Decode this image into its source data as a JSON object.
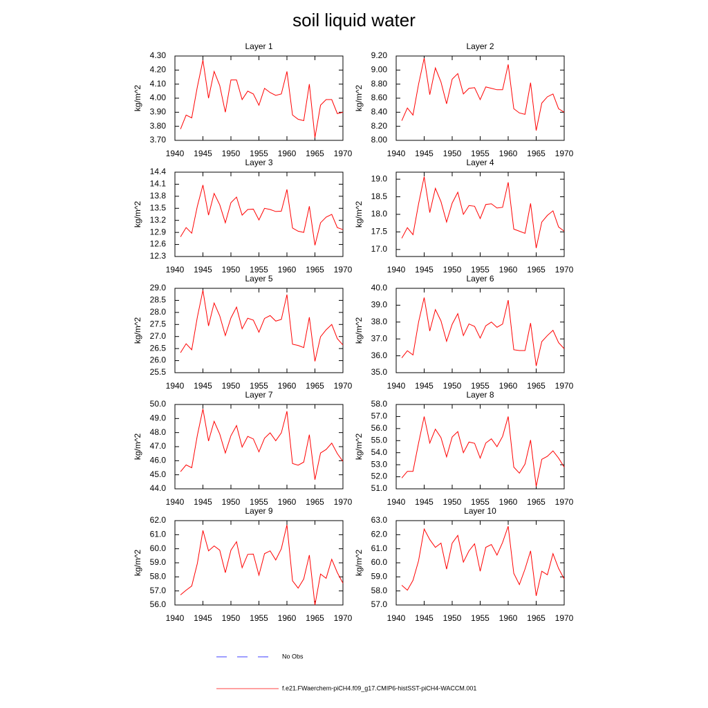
{
  "title": "soil liquid water",
  "legend": [
    {
      "name": "No Obs",
      "color": "#0000ff",
      "dash": true
    },
    {
      "name": "f.e21.FWaerchem-piCH4.f09_g17.CMIP6-histSST-piCH4-WACCM.001",
      "color": "#ff0000",
      "dash": false
    }
  ],
  "chart_data": [
    {
      "type": "line",
      "title": "Layer 1",
      "ylabel": "kg/m^2",
      "color": "#ff0000",
      "x": [
        1941,
        1942,
        1943,
        1944,
        1945,
        1946,
        1947,
        1948,
        1949,
        1950,
        1951,
        1952,
        1953,
        1954,
        1955,
        1956,
        1957,
        1958,
        1959,
        1960,
        1961,
        1962,
        1963,
        1964,
        1965,
        1966,
        1967,
        1968,
        1969,
        1970
      ],
      "values": [
        3.78,
        3.88,
        3.86,
        4.08,
        4.27,
        4.0,
        4.19,
        4.09,
        3.9,
        4.13,
        4.13,
        3.99,
        4.05,
        4.03,
        3.95,
        4.07,
        4.04,
        4.02,
        4.03,
        4.19,
        3.88,
        3.85,
        3.84,
        4.1,
        3.72,
        3.95,
        3.99,
        3.99,
        3.89,
        3.9
      ],
      "xlim": [
        1940,
        1970
      ],
      "xticks": [
        1940,
        1945,
        1950,
        1955,
        1960,
        1965,
        1970
      ],
      "ylim": [
        3.7,
        4.3
      ],
      "yticks": [
        {
          "value": 3.7,
          "label": "3.70"
        },
        {
          "value": 3.8,
          "label": "3.80"
        },
        {
          "value": 3.9,
          "label": "3.90"
        },
        {
          "value": 4.0,
          "label": "4.00"
        },
        {
          "value": 4.1,
          "label": "4.10"
        },
        {
          "value": 4.2,
          "label": "4.20"
        },
        {
          "value": 4.3,
          "label": "4.30"
        }
      ]
    },
    {
      "type": "line",
      "title": "Layer 2",
      "ylabel": "kg/m^2",
      "color": "#ff0000",
      "x": [
        1941,
        1942,
        1943,
        1944,
        1945,
        1946,
        1947,
        1948,
        1949,
        1950,
        1951,
        1952,
        1953,
        1954,
        1955,
        1956,
        1957,
        1958,
        1959,
        1960,
        1961,
        1962,
        1963,
        1964,
        1965,
        1966,
        1967,
        1968,
        1969,
        1970
      ],
      "values": [
        8.28,
        8.46,
        8.36,
        8.8,
        9.17,
        8.65,
        9.03,
        8.83,
        8.52,
        8.87,
        8.95,
        8.66,
        8.74,
        8.75,
        8.58,
        8.76,
        8.74,
        8.72,
        8.72,
        9.08,
        8.45,
        8.39,
        8.37,
        8.82,
        8.14,
        8.53,
        8.62,
        8.66,
        8.45,
        8.4
      ],
      "xlim": [
        1940,
        1970
      ],
      "xticks": [
        1940,
        1945,
        1950,
        1955,
        1960,
        1965,
        1970
      ],
      "ylim": [
        8.0,
        9.2
      ],
      "yticks": [
        {
          "value": 8.0,
          "label": "8.00"
        },
        {
          "value": 8.2,
          "label": "8.20"
        },
        {
          "value": 8.4,
          "label": "8.40"
        },
        {
          "value": 8.6,
          "label": "8.60"
        },
        {
          "value": 8.8,
          "label": "8.80"
        },
        {
          "value": 9.0,
          "label": "9.00"
        },
        {
          "value": 9.2,
          "label": "9.20"
        }
      ]
    },
    {
      "type": "line",
      "title": "Layer 3",
      "ylabel": "kg/m^2",
      "color": "#ff0000",
      "x": [
        1941,
        1942,
        1943,
        1944,
        1945,
        1946,
        1947,
        1948,
        1949,
        1950,
        1951,
        1952,
        1953,
        1954,
        1955,
        1956,
        1957,
        1958,
        1959,
        1960,
        1961,
        1962,
        1963,
        1964,
        1965,
        1966,
        1967,
        1968,
        1969,
        1970
      ],
      "values": [
        12.79,
        13.02,
        12.88,
        13.55,
        14.08,
        13.33,
        13.87,
        13.59,
        13.14,
        13.64,
        13.78,
        13.33,
        13.47,
        13.48,
        13.21,
        13.5,
        13.47,
        13.42,
        13.43,
        13.97,
        13.01,
        12.93,
        12.9,
        13.55,
        12.58,
        13.14,
        13.28,
        13.35,
        13.02,
        12.97
      ],
      "xlim": [
        1940,
        1970
      ],
      "xticks": [
        1940,
        1945,
        1950,
        1955,
        1960,
        1965,
        1970
      ],
      "ylim": [
        12.3,
        14.4
      ],
      "yticks": [
        12.3,
        12.6,
        12.9,
        13.2,
        13.5,
        13.8,
        14.1,
        14.4
      ]
    },
    {
      "type": "line",
      "title": "Layer 4",
      "ylabel": "kg/m^2",
      "color": "#ff0000",
      "x": [
        1941,
        1942,
        1943,
        1944,
        1945,
        1946,
        1947,
        1948,
        1949,
        1950,
        1951,
        1952,
        1953,
        1954,
        1955,
        1956,
        1957,
        1958,
        1959,
        1960,
        1961,
        1962,
        1963,
        1964,
        1965,
        1966,
        1967,
        1968,
        1969,
        1970
      ],
      "values": [
        17.32,
        17.62,
        17.42,
        18.3,
        19.07,
        18.05,
        18.74,
        18.36,
        17.78,
        18.32,
        18.63,
        18.0,
        18.25,
        18.23,
        17.88,
        18.28,
        18.3,
        18.18,
        18.2,
        18.91,
        17.58,
        17.52,
        17.46,
        18.31,
        17.04,
        17.78,
        17.97,
        18.1,
        17.64,
        17.52
      ],
      "xlim": [
        1940,
        1970
      ],
      "xticks": [
        1940,
        1945,
        1950,
        1955,
        1960,
        1965,
        1970
      ],
      "ylim": [
        16.8,
        19.2
      ],
      "yticks": [
        {
          "value": 17.0,
          "label": "17.0"
        },
        17.5,
        {
          "value": 18.0,
          "label": "18.0"
        },
        18.5,
        {
          "value": 19.0,
          "label": "19.0"
        }
      ]
    },
    {
      "type": "line",
      "title": "Layer 5",
      "ylabel": "kg/m^2",
      "color": "#ff0000",
      "x": [
        1941,
        1942,
        1943,
        1944,
        1945,
        1946,
        1947,
        1948,
        1949,
        1950,
        1951,
        1952,
        1953,
        1954,
        1955,
        1956,
        1957,
        1958,
        1959,
        1960,
        1961,
        1962,
        1963,
        1964,
        1965,
        1966,
        1967,
        1968,
        1969,
        1970
      ],
      "values": [
        26.33,
        26.7,
        26.45,
        27.8,
        28.92,
        27.44,
        28.39,
        27.86,
        27.04,
        27.77,
        28.22,
        27.32,
        27.76,
        27.68,
        27.18,
        27.75,
        27.87,
        27.64,
        27.71,
        28.74,
        26.68,
        26.63,
        26.54,
        27.8,
        25.97,
        26.99,
        27.28,
        27.5,
        26.91,
        26.65
      ],
      "xlim": [
        1940,
        1970
      ],
      "xticks": [
        1940,
        1945,
        1950,
        1955,
        1960,
        1965,
        1970
      ],
      "ylim": [
        25.5,
        29.0
      ],
      "yticks": [
        25.5,
        {
          "value": 26.0,
          "label": "26.0"
        },
        26.5,
        {
          "value": 27.0,
          "label": "27.0"
        },
        27.5,
        {
          "value": 28.0,
          "label": "28.0"
        },
        28.5,
        {
          "value": 29.0,
          "label": "29.0"
        }
      ]
    },
    {
      "type": "line",
      "title": "Layer 6",
      "ylabel": "kg/m^2",
      "color": "#ff0000",
      "x": [
        1941,
        1942,
        1943,
        1944,
        1945,
        1946,
        1947,
        1948,
        1949,
        1950,
        1951,
        1952,
        1953,
        1954,
        1955,
        1956,
        1957,
        1958,
        1959,
        1960,
        1961,
        1962,
        1963,
        1964,
        1965,
        1966,
        1967,
        1968,
        1969,
        1970
      ],
      "values": [
        35.88,
        36.3,
        36.05,
        38.0,
        39.45,
        37.47,
        38.74,
        38.07,
        36.86,
        37.87,
        38.5,
        37.2,
        37.89,
        37.74,
        37.05,
        37.78,
        38.0,
        37.69,
        37.88,
        39.3,
        36.36,
        36.31,
        36.31,
        37.94,
        35.4,
        36.84,
        37.2,
        37.51,
        36.78,
        36.42
      ],
      "xlim": [
        1940,
        1970
      ],
      "xticks": [
        1940,
        1945,
        1950,
        1955,
        1960,
        1965,
        1970
      ],
      "ylim": [
        35.0,
        40.0
      ],
      "yticks": [
        {
          "value": 35,
          "label": "35.0"
        },
        {
          "value": 36,
          "label": "36.0"
        },
        {
          "value": 37,
          "label": "37.0"
        },
        {
          "value": 38,
          "label": "38.0"
        },
        {
          "value": 39,
          "label": "39.0"
        },
        {
          "value": 40,
          "label": "40.0"
        }
      ]
    },
    {
      "type": "line",
      "title": "Layer 7",
      "ylabel": "kg/m^2",
      "color": "#ff0000",
      "x": [
        1941,
        1942,
        1943,
        1944,
        1945,
        1946,
        1947,
        1948,
        1949,
        1950,
        1951,
        1952,
        1953,
        1954,
        1955,
        1956,
        1957,
        1958,
        1959,
        1960,
        1961,
        1962,
        1963,
        1964,
        1965,
        1966,
        1967,
        1968,
        1969,
        1970
      ],
      "values": [
        45.22,
        45.7,
        45.5,
        47.8,
        49.68,
        47.4,
        48.8,
        47.9,
        46.55,
        47.78,
        48.5,
        46.97,
        47.73,
        47.55,
        46.63,
        47.6,
        47.98,
        47.42,
        47.98,
        49.52,
        45.8,
        45.68,
        45.9,
        47.85,
        44.65,
        46.55,
        46.8,
        47.25,
        46.5,
        45.95
      ],
      "xlim": [
        1940,
        1970
      ],
      "xticks": [
        1940,
        1945,
        1950,
        1955,
        1960,
        1965,
        1970
      ],
      "ylim": [
        44.0,
        50.0
      ],
      "yticks": [
        {
          "value": 44,
          "label": "44.0"
        },
        {
          "value": 45,
          "label": "45.0"
        },
        {
          "value": 46,
          "label": "46.0"
        },
        {
          "value": 47,
          "label": "47.0"
        },
        {
          "value": 48,
          "label": "48.0"
        },
        {
          "value": 49,
          "label": "49.0"
        },
        {
          "value": 50,
          "label": "50.0"
        }
      ]
    },
    {
      "type": "line",
      "title": "Layer 8",
      "ylabel": "kg/m^2",
      "color": "#ff0000",
      "x": [
        1941,
        1942,
        1943,
        1944,
        1945,
        1946,
        1947,
        1948,
        1949,
        1950,
        1951,
        1952,
        1953,
        1954,
        1955,
        1956,
        1957,
        1958,
        1959,
        1960,
        1961,
        1962,
        1963,
        1964,
        1965,
        1966,
        1967,
        1968,
        1969,
        1970
      ],
      "values": [
        51.9,
        52.45,
        52.45,
        54.8,
        57.0,
        54.8,
        55.95,
        55.25,
        53.65,
        55.3,
        55.75,
        54.0,
        54.88,
        54.78,
        53.55,
        54.8,
        55.15,
        54.5,
        55.35,
        57.0,
        52.8,
        52.3,
        53.05,
        55.05,
        51.2,
        53.45,
        53.7,
        54.15,
        53.55,
        52.8
      ],
      "xlim": [
        1940,
        1970
      ],
      "xticks": [
        1940,
        1945,
        1950,
        1955,
        1960,
        1965,
        1970
      ],
      "ylim": [
        51.0,
        58.0
      ],
      "yticks": [
        {
          "value": 51,
          "label": "51.0"
        },
        {
          "value": 52,
          "label": "52.0"
        },
        {
          "value": 53,
          "label": "53.0"
        },
        {
          "value": 54,
          "label": "54.0"
        },
        {
          "value": 55,
          "label": "55.0"
        },
        {
          "value": 56,
          "label": "56.0"
        },
        {
          "value": 57,
          "label": "57.0"
        },
        {
          "value": 58,
          "label": "58.0"
        }
      ]
    },
    {
      "type": "line",
      "title": "Layer 9",
      "ylabel": "kg/m^2",
      "color": "#ff0000",
      "x": [
        1941,
        1942,
        1943,
        1944,
        1945,
        1946,
        1947,
        1948,
        1949,
        1950,
        1951,
        1952,
        1953,
        1954,
        1955,
        1956,
        1957,
        1958,
        1959,
        1960,
        1961,
        1962,
        1963,
        1964,
        1965,
        1966,
        1967,
        1968,
        1969,
        1970
      ],
      "values": [
        56.72,
        57.05,
        57.35,
        58.95,
        61.3,
        59.85,
        60.2,
        59.9,
        58.3,
        59.9,
        60.5,
        58.65,
        59.6,
        59.62,
        58.12,
        59.65,
        59.85,
        59.2,
        60.0,
        61.7,
        57.72,
        57.2,
        57.85,
        59.55,
        56.0,
        58.2,
        57.9,
        59.25,
        58.3,
        57.55
      ],
      "xlim": [
        1940,
        1970
      ],
      "xticks": [
        1940,
        1945,
        1950,
        1955,
        1960,
        1965,
        1970
      ],
      "ylim": [
        56.0,
        62.0
      ],
      "yticks": [
        {
          "value": 56,
          "label": "56.0"
        },
        {
          "value": 57,
          "label": "57.0"
        },
        {
          "value": 58,
          "label": "58.0"
        },
        {
          "value": 59,
          "label": "59.0"
        },
        {
          "value": 60,
          "label": "60.0"
        },
        {
          "value": 61,
          "label": "61.0"
        },
        {
          "value": 62,
          "label": "62.0"
        }
      ]
    },
    {
      "type": "line",
      "title": "Layer 10",
      "ylabel": "kg/m^2",
      "color": "#ff0000",
      "x": [
        1941,
        1942,
        1943,
        1944,
        1945,
        1946,
        1947,
        1948,
        1949,
        1950,
        1951,
        1952,
        1953,
        1954,
        1955,
        1956,
        1957,
        1958,
        1959,
        1960,
        1961,
        1962,
        1963,
        1964,
        1965,
        1966,
        1967,
        1968,
        1969,
        1970
      ],
      "values": [
        58.4,
        58.05,
        58.75,
        60.15,
        62.4,
        61.65,
        61.1,
        61.4,
        59.55,
        61.4,
        61.95,
        60.05,
        60.85,
        61.35,
        59.4,
        61.1,
        61.3,
        60.55,
        61.45,
        62.6,
        59.25,
        58.45,
        59.55,
        60.85,
        57.65,
        59.4,
        59.15,
        60.65,
        59.6,
        58.85
      ],
      "xlim": [
        1940,
        1970
      ],
      "xticks": [
        1940,
        1945,
        1950,
        1955,
        1960,
        1965,
        1970
      ],
      "ylim": [
        57.0,
        63.0
      ],
      "yticks": [
        {
          "value": 57,
          "label": "57.0"
        },
        {
          "value": 58,
          "label": "58.0"
        },
        {
          "value": 59,
          "label": "59.0"
        },
        {
          "value": 60,
          "label": "60.0"
        },
        {
          "value": 61,
          "label": "61.0"
        },
        {
          "value": 62,
          "label": "62.0"
        },
        {
          "value": 63,
          "label": "63.0"
        }
      ]
    }
  ]
}
